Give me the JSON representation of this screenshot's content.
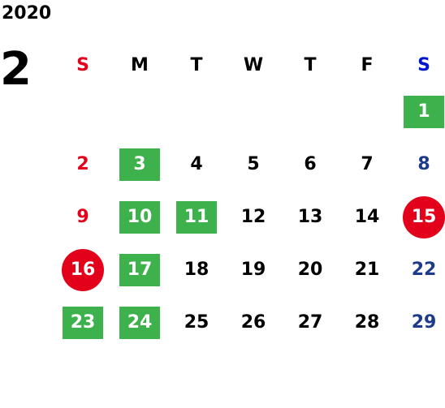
{
  "year": "2020",
  "month": "2",
  "weekdays": [
    "S",
    "M",
    "T",
    "W",
    "T",
    "F",
    "S"
  ],
  "colors": {
    "sunday": "#e2001a",
    "saturday_header": "#0017d0",
    "saturday": "#1e3a8a",
    "green_highlight": "#3db14b",
    "red_highlight": "#e2001a"
  },
  "weeks": [
    [
      null,
      null,
      null,
      null,
      null,
      null,
      {
        "d": "1",
        "hl": "green"
      }
    ],
    [
      {
        "d": "2"
      },
      {
        "d": "3",
        "hl": "green"
      },
      {
        "d": "4"
      },
      {
        "d": "5"
      },
      {
        "d": "6"
      },
      {
        "d": "7"
      },
      {
        "d": "8"
      }
    ],
    [
      {
        "d": "9"
      },
      {
        "d": "10",
        "hl": "green"
      },
      {
        "d": "11",
        "hl": "green"
      },
      {
        "d": "12"
      },
      {
        "d": "13"
      },
      {
        "d": "14"
      },
      {
        "d": "15",
        "hl": "red"
      }
    ],
    [
      {
        "d": "16",
        "hl": "red"
      },
      {
        "d": "17",
        "hl": "green"
      },
      {
        "d": "18"
      },
      {
        "d": "19"
      },
      {
        "d": "20"
      },
      {
        "d": "21"
      },
      {
        "d": "22"
      }
    ],
    [
      {
        "d": "23",
        "hl": "green"
      },
      {
        "d": "24",
        "hl": "green"
      },
      {
        "d": "25"
      },
      {
        "d": "26"
      },
      {
        "d": "27"
      },
      {
        "d": "28"
      },
      {
        "d": "29"
      }
    ]
  ]
}
